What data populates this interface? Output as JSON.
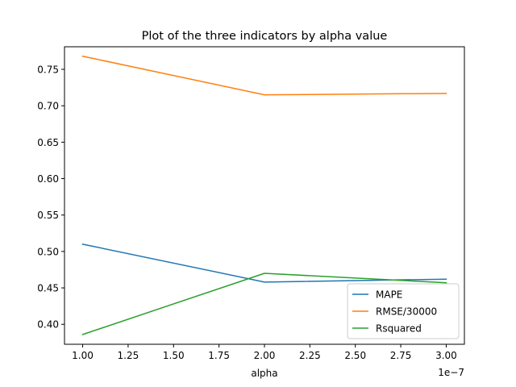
{
  "chart_data": {
    "type": "line",
    "title": "Plot of the three indicators by alpha value",
    "xlabel": "alpha",
    "ylabel": "",
    "x_offset_label": "1e−7",
    "x": [
      1e-07,
      2e-07,
      3e-07
    ],
    "x_ticks": [
      1e-07,
      1.25e-07,
      1.5e-07,
      1.75e-07,
      2e-07,
      2.25e-07,
      2.5e-07,
      2.75e-07,
      3e-07
    ],
    "x_tick_labels": [
      "1.00",
      "1.25",
      "1.50",
      "1.75",
      "2.00",
      "2.25",
      "2.50",
      "2.75",
      "3.00"
    ],
    "xlim": [
      9e-08,
      3.1e-07
    ],
    "y_ticks": [
      0.4,
      0.45,
      0.5,
      0.55,
      0.6,
      0.65,
      0.7,
      0.75
    ],
    "y_tick_labels": [
      "0.40",
      "0.45",
      "0.50",
      "0.55",
      "0.60",
      "0.65",
      "0.70",
      "0.75"
    ],
    "ylim": [
      0.3726,
      0.781
    ],
    "grid": false,
    "legend_position": "lower-right",
    "series": [
      {
        "name": "MAPE",
        "color": "#1f77b4",
        "values": [
          0.51,
          0.458,
          0.462
        ]
      },
      {
        "name": "RMSE/30000",
        "color": "#ff7f0e",
        "values": [
          0.768,
          0.715,
          0.717
        ]
      },
      {
        "name": "Rsquared",
        "color": "#2ca02c",
        "values": [
          0.386,
          0.47,
          0.457
        ]
      }
    ]
  }
}
